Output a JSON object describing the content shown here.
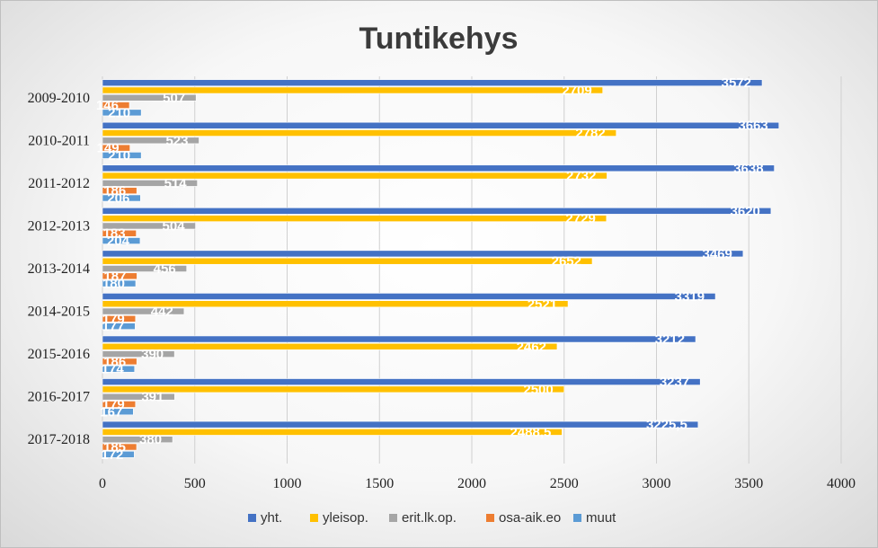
{
  "chart_data": {
    "type": "bar",
    "orientation": "horizontal",
    "title": "Tuntikehys",
    "categories": [
      "2009-2010",
      "2010-2011",
      "2011-2012",
      "2012-2013",
      "2013-2014",
      "2014-2015",
      "2015-2016",
      "2016-2017",
      "2017-2018"
    ],
    "series": [
      {
        "name": "yht.",
        "color": "#4472c4",
        "values": [
          3572,
          3663,
          3638,
          3620,
          3469,
          3319,
          3212,
          3237,
          3225.5
        ],
        "labels": [
          "3572",
          "3663",
          "3638",
          "3620",
          "3469",
          "3319",
          "3212",
          "3237",
          "3225,5"
        ]
      },
      {
        "name": "yleisop.",
        "color": "#ffc000",
        "values": [
          2709,
          2782,
          2732,
          2729,
          2652,
          2521,
          2462,
          2500,
          2488.5
        ],
        "labels": [
          "2709",
          "2782",
          "2732",
          "2729",
          "2652",
          "2521",
          "2462",
          "2500",
          "2488,5"
        ]
      },
      {
        "name": "erit.lk.op.",
        "color": "#a5a5a5",
        "values": [
          507,
          523,
          514,
          504,
          456,
          442,
          390,
          391,
          380
        ],
        "labels": [
          "507",
          "523",
          "514",
          "504",
          "456",
          "442",
          "390",
          "391",
          "380"
        ]
      },
      {
        "name": "osa-aik.eo",
        "color": "#ed7d31",
        "values": [
          146,
          149,
          186,
          183,
          187,
          179,
          186,
          179,
          185
        ],
        "labels": [
          "146",
          "149",
          "186",
          "183",
          "187",
          "179",
          "186",
          "179",
          "185"
        ]
      },
      {
        "name": "muut",
        "color": "#5b9bd5",
        "values": [
          210,
          210,
          206,
          204,
          180,
          177,
          174,
          167,
          172
        ],
        "labels": [
          "210",
          "210",
          "206",
          "204",
          "180",
          "177",
          "174",
          "167",
          "172"
        ]
      }
    ],
    "xlim": [
      0,
      4000
    ],
    "xticks": [
      0,
      500,
      1000,
      1500,
      2000,
      2500,
      3000,
      3500,
      4000
    ],
    "grid": true,
    "legend_position": "bottom"
  }
}
